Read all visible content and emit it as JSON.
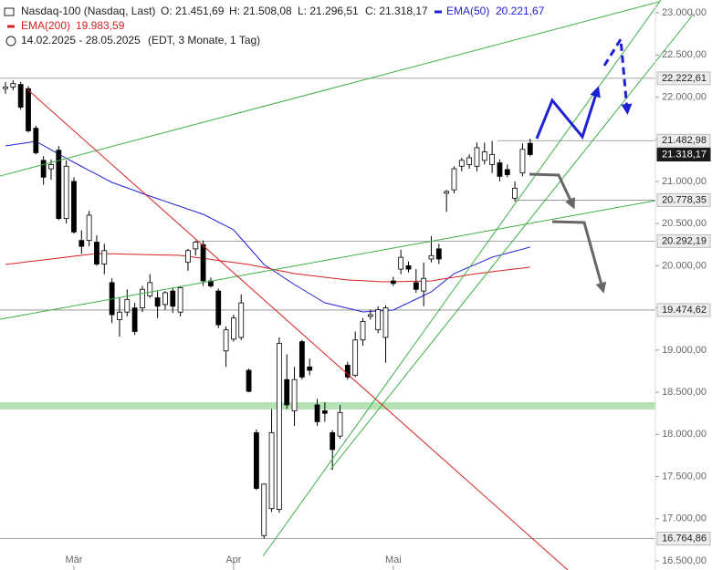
{
  "chart_data": {
    "type": "candlestick",
    "title": "Nasdaq-100 (Nasdaq, Last)",
    "ohlc_labels": [
      "O: 21.451,69",
      "H: 21.508,08",
      "L: 21.296,51",
      "C: 21.318,17"
    ],
    "period": "14.02.2025 - 28.05.2025",
    "subtitle": "(EDT, 3 Monate, 1 Tag)",
    "up_color": "#ffffff",
    "down_color": "#000000",
    "ylim": [
      16500,
      23000
    ],
    "yticks": [
      {
        "value": 16500,
        "label": "16.500,00"
      },
      {
        "value": 17000,
        "label": "17.000,00"
      },
      {
        "value": 17500,
        "label": "17.500,00"
      },
      {
        "value": 18000,
        "label": "18.000,00"
      },
      {
        "value": 18500,
        "label": "18.500,00"
      },
      {
        "value": 19000,
        "label": "19.000,00"
      },
      {
        "value": 19500,
        "label": "19.500,00"
      },
      {
        "value": 20000,
        "label": "20.000,00"
      },
      {
        "value": 20500,
        "label": "20.500,00"
      },
      {
        "value": 21000,
        "label": "21.000,00"
      },
      {
        "value": 21500,
        "label": "21.500,00"
      },
      {
        "value": 22000,
        "label": "22.000,00"
      },
      {
        "value": 22500,
        "label": "22.500,00"
      },
      {
        "value": 23000,
        "label": "23.000,00"
      }
    ],
    "levels": [
      {
        "value": 22222.61,
        "label": "22.222,61"
      },
      {
        "value": 21482.98,
        "label": "21.482,98"
      },
      {
        "value": 21318.17,
        "label": "21.318,17",
        "current": true
      },
      {
        "value": 20778.35,
        "label": "20.778,35"
      },
      {
        "value": 20292.19,
        "label": "20.292,19"
      },
      {
        "value": 19474.62,
        "label": "19.474,62"
      },
      {
        "value": 16764.86,
        "label": "16.764,86"
      }
    ],
    "support_zone": [
      18295,
      18382
    ],
    "categories": [
      null,
      null,
      null,
      null,
      null,
      null,
      null,
      null,
      null,
      "Mär",
      null,
      null,
      null,
      null,
      null,
      null,
      null,
      null,
      null,
      null,
      null,
      null,
      null,
      null,
      null,
      null,
      null,
      null,
      null,
      null,
      "Apr",
      null,
      null,
      null,
      null,
      null,
      null,
      null,
      null,
      null,
      null,
      null,
      null,
      null,
      null,
      null,
      null,
      null,
      null,
      null,
      null,
      "Mai",
      null,
      null,
      null,
      null,
      null,
      null,
      null,
      null,
      null,
      null,
      null,
      null,
      null,
      null,
      null,
      null,
      null,
      null
    ],
    "candles": [
      {
        "open": 22100,
        "high": 22180,
        "low": 22040,
        "close": 22120
      },
      {
        "open": 22120,
        "high": 22200,
        "low": 22080,
        "close": 22160
      },
      {
        "open": 22150,
        "high": 22180,
        "low": 21850,
        "close": 21880
      },
      {
        "open": 22100,
        "high": 22130,
        "low": 21580,
        "close": 21600
      },
      {
        "open": 21630,
        "high": 21660,
        "low": 21320,
        "close": 21340
      },
      {
        "open": 21250,
        "high": 21300,
        "low": 20960,
        "close": 21050
      },
      {
        "open": 21150,
        "high": 21260,
        "low": 21020,
        "close": 21200
      },
      {
        "open": 21370,
        "high": 21420,
        "low": 20540,
        "close": 20560
      },
      {
        "open": 20560,
        "high": 21250,
        "low": 20500,
        "close": 21180
      },
      {
        "open": 21000,
        "high": 21050,
        "low": 20380,
        "close": 20400
      },
      {
        "open": 20300,
        "high": 20420,
        "low": 20140,
        "close": 20230
      },
      {
        "open": 20300,
        "high": 20650,
        "low": 20230,
        "close": 20600
      },
      {
        "open": 20280,
        "high": 20360,
        "low": 20000,
        "close": 20020
      },
      {
        "open": 20020,
        "high": 20260,
        "low": 19900,
        "close": 20180
      },
      {
        "open": 19800,
        "high": 19850,
        "low": 19320,
        "close": 19420
      },
      {
        "open": 19360,
        "high": 19620,
        "low": 19160,
        "close": 19450
      },
      {
        "open": 19450,
        "high": 19720,
        "low": 19400,
        "close": 19600
      },
      {
        "open": 19500,
        "high": 19560,
        "low": 19180,
        "close": 19220
      },
      {
        "open": 19500,
        "high": 19760,
        "low": 19450,
        "close": 19720
      },
      {
        "open": 19640,
        "high": 19900,
        "low": 19620,
        "close": 19800
      },
      {
        "open": 19620,
        "high": 19700,
        "low": 19380,
        "close": 19520
      },
      {
        "open": 19540,
        "high": 19700,
        "low": 19480,
        "close": 19680
      },
      {
        "open": 19700,
        "high": 19740,
        "low": 19440,
        "close": 19520
      },
      {
        "open": 19450,
        "high": 19760,
        "low": 19400,
        "close": 19740
      },
      {
        "open": 20040,
        "high": 20200,
        "low": 19940,
        "close": 20180
      },
      {
        "open": 20200,
        "high": 20300,
        "low": 20120,
        "close": 20280
      },
      {
        "open": 20250,
        "high": 20300,
        "low": 19760,
        "close": 19820
      },
      {
        "open": 19820,
        "high": 19860,
        "low": 19740,
        "close": 19760
      },
      {
        "open": 19700,
        "high": 19730,
        "low": 19260,
        "close": 19300
      },
      {
        "open": 18990,
        "high": 19280,
        "low": 18800,
        "close": 19240
      },
      {
        "open": 19130,
        "high": 19420,
        "low": 19100,
        "close": 19380
      },
      {
        "open": 19150,
        "high": 19660,
        "low": 19120,
        "close": 19560
      },
      {
        "open": 18760,
        "high": 18780,
        "low": 18500,
        "close": 18510
      },
      {
        "open": 18020,
        "high": 18060,
        "low": 17340,
        "close": 17360
      },
      {
        "open": 16800,
        "high": 17420,
        "low": 16764.86,
        "close": 17410
      },
      {
        "open": 17120,
        "high": 18300,
        "low": 17080,
        "close": 18020
      },
      {
        "open": 17110,
        "high": 19150,
        "low": 17070,
        "close": 19080
      },
      {
        "open": 18650,
        "high": 18950,
        "low": 18300,
        "close": 18350
      },
      {
        "open": 18280,
        "high": 18800,
        "low": 18100,
        "close": 18650
      },
      {
        "open": 19100,
        "high": 19120,
        "low": 18650,
        "close": 18680
      },
      {
        "open": 18800,
        "high": 18900,
        "low": 18700,
        "close": 18760
      },
      {
        "open": 18350,
        "high": 18420,
        "low": 18100,
        "close": 18150
      },
      {
        "open": 18280,
        "high": 18380,
        "low": 18150,
        "close": 18250
      },
      {
        "open": 18020,
        "high": 18050,
        "low": 17580,
        "close": 17820
      },
      {
        "open": 17980,
        "high": 18350,
        "low": 17950,
        "close": 18260
      },
      {
        "open": 18820,
        "high": 18860,
        "low": 18650,
        "close": 18680
      },
      {
        "open": 18700,
        "high": 19220,
        "low": 18680,
        "close": 19120
      },
      {
        "open": 19120,
        "high": 19380,
        "low": 19050,
        "close": 19340
      },
      {
        "open": 19400,
        "high": 19480,
        "low": 19360,
        "close": 19420
      },
      {
        "open": 19240,
        "high": 19520,
        "low": 19200,
        "close": 19480
      },
      {
        "open": 19150,
        "high": 19530,
        "low": 18850,
        "close": 19500
      },
      {
        "open": 19820,
        "high": 19870,
        "low": 19760,
        "close": 19790
      },
      {
        "open": 19960,
        "high": 20190,
        "low": 19900,
        "close": 20100
      },
      {
        "open": 20000,
        "high": 20050,
        "low": 19920,
        "close": 19960
      },
      {
        "open": 19800,
        "high": 19960,
        "low": 19680,
        "close": 19720
      },
      {
        "open": 19700,
        "high": 20040,
        "low": 19520,
        "close": 19850
      },
      {
        "open": 20080,
        "high": 20350,
        "low": 20040,
        "close": 20120
      },
      {
        "open": 20200,
        "high": 20260,
        "low": 20020,
        "close": 20080
      },
      {
        "open": 20860,
        "high": 20900,
        "low": 20640,
        "close": 20880
      },
      {
        "open": 20900,
        "high": 21180,
        "low": 20860,
        "close": 21150
      },
      {
        "open": 21180,
        "high": 21280,
        "low": 21120,
        "close": 21250
      },
      {
        "open": 21200,
        "high": 21320,
        "low": 21150,
        "close": 21280
      },
      {
        "open": 21180,
        "high": 21460,
        "low": 21120,
        "close": 21400
      },
      {
        "open": 21250,
        "high": 21460,
        "low": 21200,
        "close": 21350
      },
      {
        "open": 21200,
        "high": 21480,
        "low": 21100,
        "close": 21320
      },
      {
        "open": 21220,
        "high": 21260,
        "low": 21000,
        "close": 21060
      },
      {
        "open": 21140,
        "high": 21200,
        "low": 21050,
        "close": 21080
      },
      {
        "open": 20800,
        "high": 21000,
        "low": 20760,
        "close": 20920
      },
      {
        "open": 21100,
        "high": 21450,
        "low": 21060,
        "close": 21380
      },
      {
        "open": 21451.69,
        "high": 21508.08,
        "low": 21296.51,
        "close": 21318.17
      }
    ],
    "series": [
      {
        "name": "EMA(50)",
        "color": "#1f1fd6",
        "value_label": "20.221,67",
        "values": [
          21421,
          21435,
          21448,
          21462,
          21475,
          21425,
          21375,
          21325,
          21275,
          21226,
          21178,
          21130,
          21083,
          21035,
          20988,
          20956,
          20923,
          20891,
          20858,
          20826,
          20795,
          20764,
          20733,
          20703,
          20672,
          20641,
          20610,
          20564,
          20518,
          20472,
          20426,
          20323,
          20220,
          20118,
          20015,
          19956,
          19896,
          19837,
          19777,
          19723,
          19669,
          19615,
          19561,
          19539,
          19518,
          19496,
          19475,
          19453,
          19458,
          19464,
          19469,
          19474,
          19517,
          19560,
          19604,
          19647,
          19690,
          19762,
          19835,
          19907,
          19946,
          19985,
          20023,
          20062,
          20101,
          20125,
          20149,
          20173,
          20197,
          20221.67
        ]
      },
      {
        "name": "EMA(200)",
        "color": "#d62020",
        "value_label": "19.983,59",
        "values": [
          20015,
          20026,
          20037,
          20048,
          20058,
          20069,
          20080,
          20091,
          20102,
          20113,
          20123,
          20134,
          20145,
          20143,
          20141,
          20139,
          20137,
          20135,
          20133,
          20131,
          20129,
          20127,
          20125,
          20123,
          20111,
          20099,
          20087,
          20075,
          20063,
          20051,
          20039,
          20027,
          20015,
          19997,
          19979,
          19961,
          19943,
          19925,
          19907,
          19896,
          19885,
          19874,
          19864,
          19853,
          19842,
          19831,
          19827,
          19822,
          19818,
          19813,
          19809,
          19811,
          19813,
          19815,
          19816,
          19818,
          19820,
          19835,
          19849,
          19864,
          19878,
          19893,
          19907,
          19918,
          19929,
          19940,
          19951,
          19962,
          19972,
          19983.59
        ]
      }
    ]
  }
}
